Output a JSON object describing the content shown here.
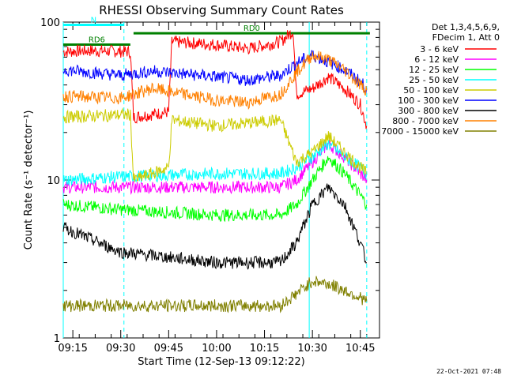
{
  "chart_data": {
    "type": "line",
    "title": "RHESSI Observing Summary Count Rates",
    "xlabel": "Start Time (12-Sep-13 09:12:22)",
    "ylabel": "Count Rate (s⁻¹ detector⁻¹)",
    "y_scale": "log",
    "ylim": [
      1,
      100
    ],
    "y_ticks": [
      1,
      10,
      100
    ],
    "y_tick_labels": [
      "1",
      "10",
      "100"
    ],
    "x_range_minutes": [
      "09:12",
      "10:51"
    ],
    "x_ticks": [
      "09:15",
      "09:30",
      "09:45",
      "10:00",
      "10:15",
      "10:30",
      "10:45"
    ],
    "legend_header": [
      "Det 1,3,4,5,6,9,",
      "FDecim 1, Att 0"
    ],
    "series": [
      {
        "name": "3 - 6 keV",
        "color": "#ff0000",
        "x": [
          "09:12",
          "09:20",
          "09:33",
          "09:34",
          "09:45",
          "09:46",
          "10:00",
          "10:10",
          "10:20",
          "10:24",
          "10:25",
          "10:30",
          "10:35",
          "10:40",
          "10:45",
          "10:47"
        ],
        "values": [
          65,
          66,
          65,
          25,
          27,
          75,
          72,
          68,
          75,
          88,
          35,
          38,
          45,
          38,
          30,
          22
        ]
      },
      {
        "name": "6 - 12 keV",
        "color": "#ff00ff",
        "x": [
          "09:12",
          "09:30",
          "10:00",
          "10:20",
          "10:25",
          "10:30",
          "10:35",
          "10:40",
          "10:45",
          "10:47"
        ],
        "values": [
          9,
          9,
          9,
          9,
          10,
          13,
          17,
          14,
          11,
          10
        ]
      },
      {
        "name": "12 - 25 keV",
        "color": "#00ff00",
        "x": [
          "09:12",
          "09:30",
          "10:00",
          "10:20",
          "10:25",
          "10:30",
          "10:35",
          "10:40",
          "10:45",
          "10:47"
        ],
        "values": [
          7,
          6.5,
          6,
          6,
          7,
          10,
          14,
          11,
          8,
          7
        ]
      },
      {
        "name": "25 - 50 keV",
        "color": "#00ffff",
        "x": [
          "09:12",
          "09:30",
          "10:00",
          "10:20",
          "10:25",
          "10:30",
          "10:35",
          "10:40",
          "10:45",
          "10:47"
        ],
        "values": [
          10,
          10.5,
          11,
          11,
          12,
          14,
          17,
          14,
          12,
          11
        ]
      },
      {
        "name": "50 - 100 keV",
        "color": "#cccc00",
        "x": [
          "09:12",
          "09:33",
          "09:34",
          "09:45",
          "09:46",
          "10:00",
          "10:20",
          "10:25",
          "10:30",
          "10:35",
          "10:40",
          "10:45",
          "10:47"
        ],
        "values": [
          25,
          26,
          10,
          12,
          24,
          22,
          24,
          13,
          15,
          19,
          15,
          12,
          11
        ]
      },
      {
        "name": "100 - 300 keV",
        "color": "#0000ff",
        "x": [
          "09:12",
          "09:30",
          "09:40",
          "10:00",
          "10:10",
          "10:20",
          "10:25",
          "10:30",
          "10:35",
          "10:40",
          "10:45",
          "10:47"
        ],
        "values": [
          50,
          46,
          49,
          45,
          43,
          46,
          55,
          62,
          56,
          50,
          42,
          38
        ]
      },
      {
        "name": "300 - 800 keV",
        "color": "#000000",
        "x": [
          "09:12",
          "09:30",
          "10:00",
          "10:20",
          "10:25",
          "10:30",
          "10:35",
          "10:40",
          "10:45",
          "10:47"
        ],
        "values": [
          5,
          3.5,
          3,
          3,
          4,
          7,
          9,
          7,
          4,
          3
        ]
      },
      {
        "name": "800 - 7000 keV",
        "color": "#ff8000",
        "x": [
          "09:12",
          "09:30",
          "09:40",
          "10:00",
          "10:10",
          "10:20",
          "10:25",
          "10:30",
          "10:35",
          "10:40",
          "10:45",
          "10:47"
        ],
        "values": [
          34,
          33,
          38,
          32,
          31,
          35,
          48,
          62,
          58,
          50,
          40,
          37
        ]
      },
      {
        "name": "7000 - 15000 keV",
        "color": "#808000",
        "x": [
          "09:12",
          "09:30",
          "10:00",
          "10:20",
          "10:25",
          "10:30",
          "10:35",
          "10:40",
          "10:45",
          "10:47"
        ],
        "values": [
          1.6,
          1.6,
          1.6,
          1.6,
          1.9,
          2.3,
          2.2,
          2.0,
          1.8,
          1.7
        ]
      }
    ],
    "annotations": [
      {
        "text": "N",
        "color": "#00ffff",
        "x_start": "09:12",
        "x_end": "09:31",
        "y": 96
      },
      {
        "text": "RD6",
        "color": "#008000",
        "x_start": "09:12",
        "x_end": "09:33",
        "y": 72
      },
      {
        "text": "RD0",
        "color": "#008000",
        "x_start": "09:34",
        "x_end": "10:48",
        "y": 85
      }
    ],
    "vertical_markers": [
      {
        "x": "09:12",
        "color": "#00ffff",
        "style": "solid"
      },
      {
        "x": "09:31",
        "color": "#00ffff",
        "style": "dashed"
      },
      {
        "x": "10:29",
        "color": "#00ffff",
        "style": "solid"
      },
      {
        "x": "10:47",
        "color": "#00ffff",
        "style": "dashed"
      }
    ],
    "grid": false,
    "legend_placement": "right"
  },
  "footer": {
    "timestamp": "22-Oct-2021 07:48"
  }
}
